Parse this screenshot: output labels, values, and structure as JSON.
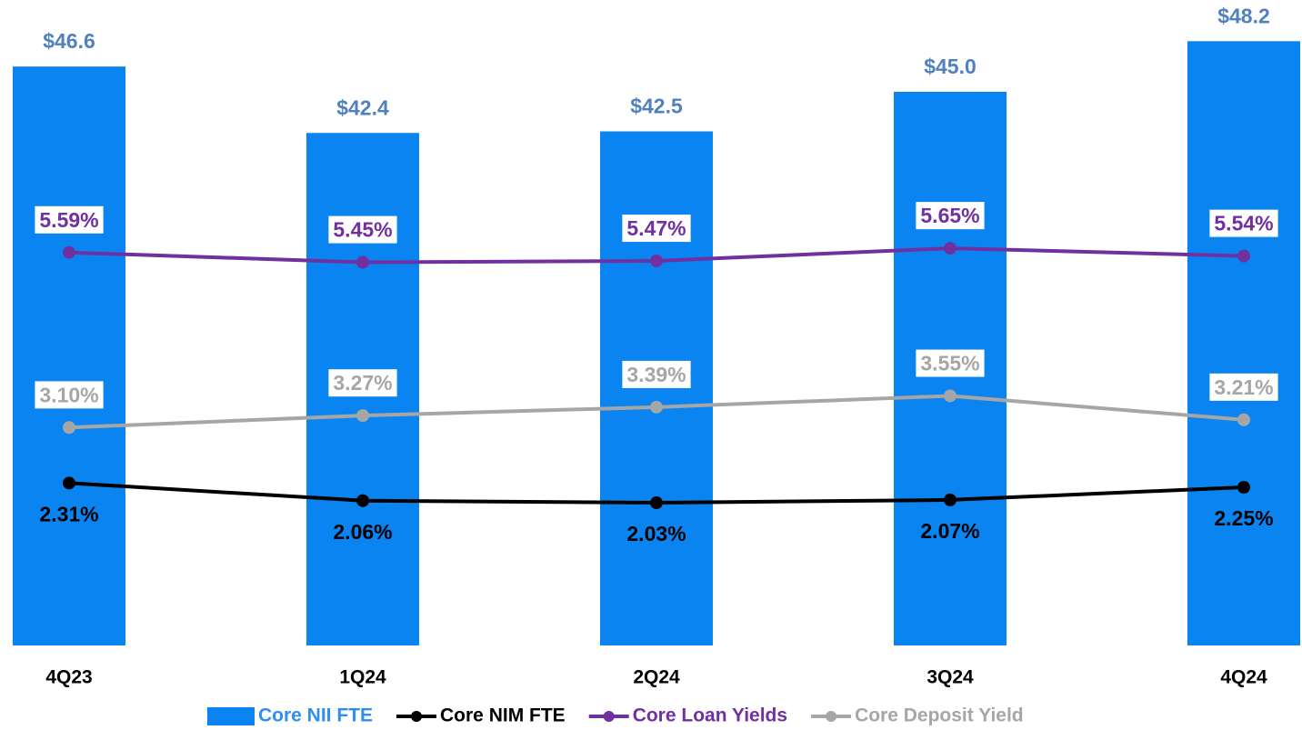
{
  "chart_data": {
    "type": "combo",
    "categories": [
      "4Q23",
      "1Q24",
      "2Q24",
      "3Q24",
      "4Q24"
    ],
    "ylim": [
      10,
      50
    ],
    "y2lim": [
      0,
      9
    ],
    "legend": "bottom",
    "series": [
      {
        "name": "Core NII FTE",
        "type": "bar",
        "axis": "y",
        "color": "#0a84f0",
        "label_color": "#4f81bd",
        "label_position": "above",
        "values": [
          46.6,
          42.4,
          42.5,
          45.0,
          48.2
        ],
        "value_labels": [
          "$46.6",
          "$42.4",
          "$42.5",
          "$45.0",
          "$48.2"
        ]
      },
      {
        "name": "Core NIM FTE",
        "type": "line",
        "axis": "y2",
        "color": "#000000",
        "label_color": "#000000",
        "label_position": "below",
        "values": [
          2.31,
          2.06,
          2.03,
          2.07,
          2.25
        ],
        "value_labels": [
          "2.31%",
          "2.06%",
          "2.03%",
          "2.07%",
          "2.25%"
        ]
      },
      {
        "name": "Core Loan Yields",
        "type": "line",
        "axis": "y2",
        "color": "#7030a0",
        "label_color": "#7030a0",
        "label_position": "above",
        "values": [
          5.59,
          5.45,
          5.47,
          5.65,
          5.54
        ],
        "value_labels": [
          "5.59%",
          "5.45%",
          "5.47%",
          "5.65%",
          "5.54%"
        ]
      },
      {
        "name": "Core Deposit Yield",
        "type": "line",
        "axis": "y2",
        "color": "#a6a6a6",
        "label_color": "#a6a6a6",
        "label_position": "above",
        "values": [
          3.1,
          3.27,
          3.39,
          3.55,
          3.21
        ],
        "value_labels": [
          "3.10%",
          "3.27%",
          "3.39%",
          "3.55%",
          "3.21%"
        ]
      }
    ]
  }
}
